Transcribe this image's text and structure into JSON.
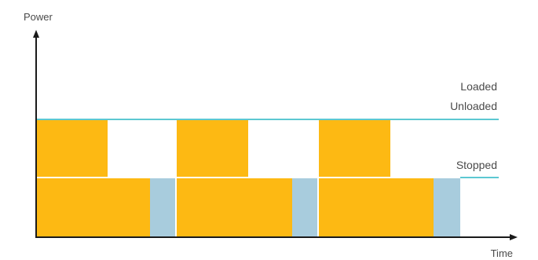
{
  "axes": {
    "y_label": "Power",
    "x_label": "Time"
  },
  "levels": {
    "loaded": "Loaded",
    "unloaded": "Unloaded",
    "stopped": "Stopped"
  },
  "colors": {
    "loaded_fill": "#FDB913",
    "stopped_fill": "#A8CCDD",
    "level_line": "#5CC8D2",
    "axis": "#1a1a1a",
    "separator": "#ffffff"
  },
  "cycles": [
    {
      "phases": [
        "loaded",
        "unloaded",
        "stopped"
      ]
    },
    {
      "phases": [
        "loaded",
        "unloaded",
        "stopped"
      ]
    },
    {
      "phases": [
        "loaded",
        "unloaded",
        "stopped"
      ]
    }
  ]
}
